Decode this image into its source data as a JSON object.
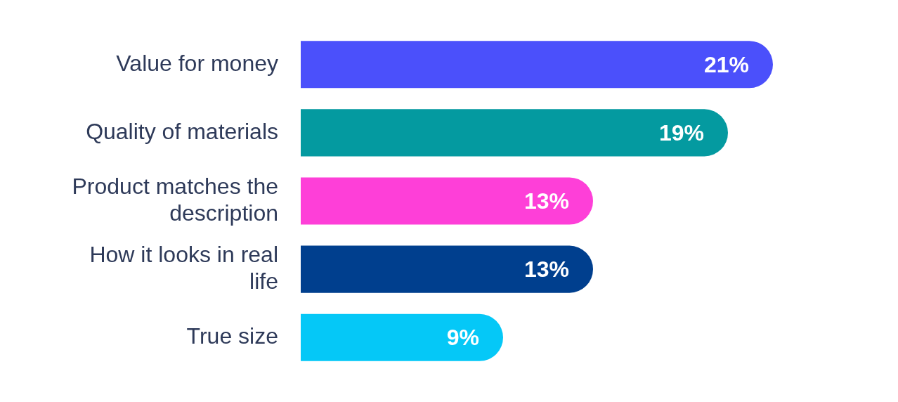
{
  "chart_data": {
    "type": "bar",
    "orientation": "horizontal",
    "categories": [
      "Value for money",
      "Quality of materials",
      "Product matches the description",
      "How it looks in real life",
      "True size"
    ],
    "values": [
      21,
      19,
      13,
      13,
      9
    ],
    "colors": [
      "#4b50fb",
      "#049aa0",
      "#fe3fd8",
      "#003f8e",
      "#05c8f7"
    ],
    "value_labels": [
      "21%",
      "19%",
      "13%",
      "13%",
      "9%"
    ]
  }
}
